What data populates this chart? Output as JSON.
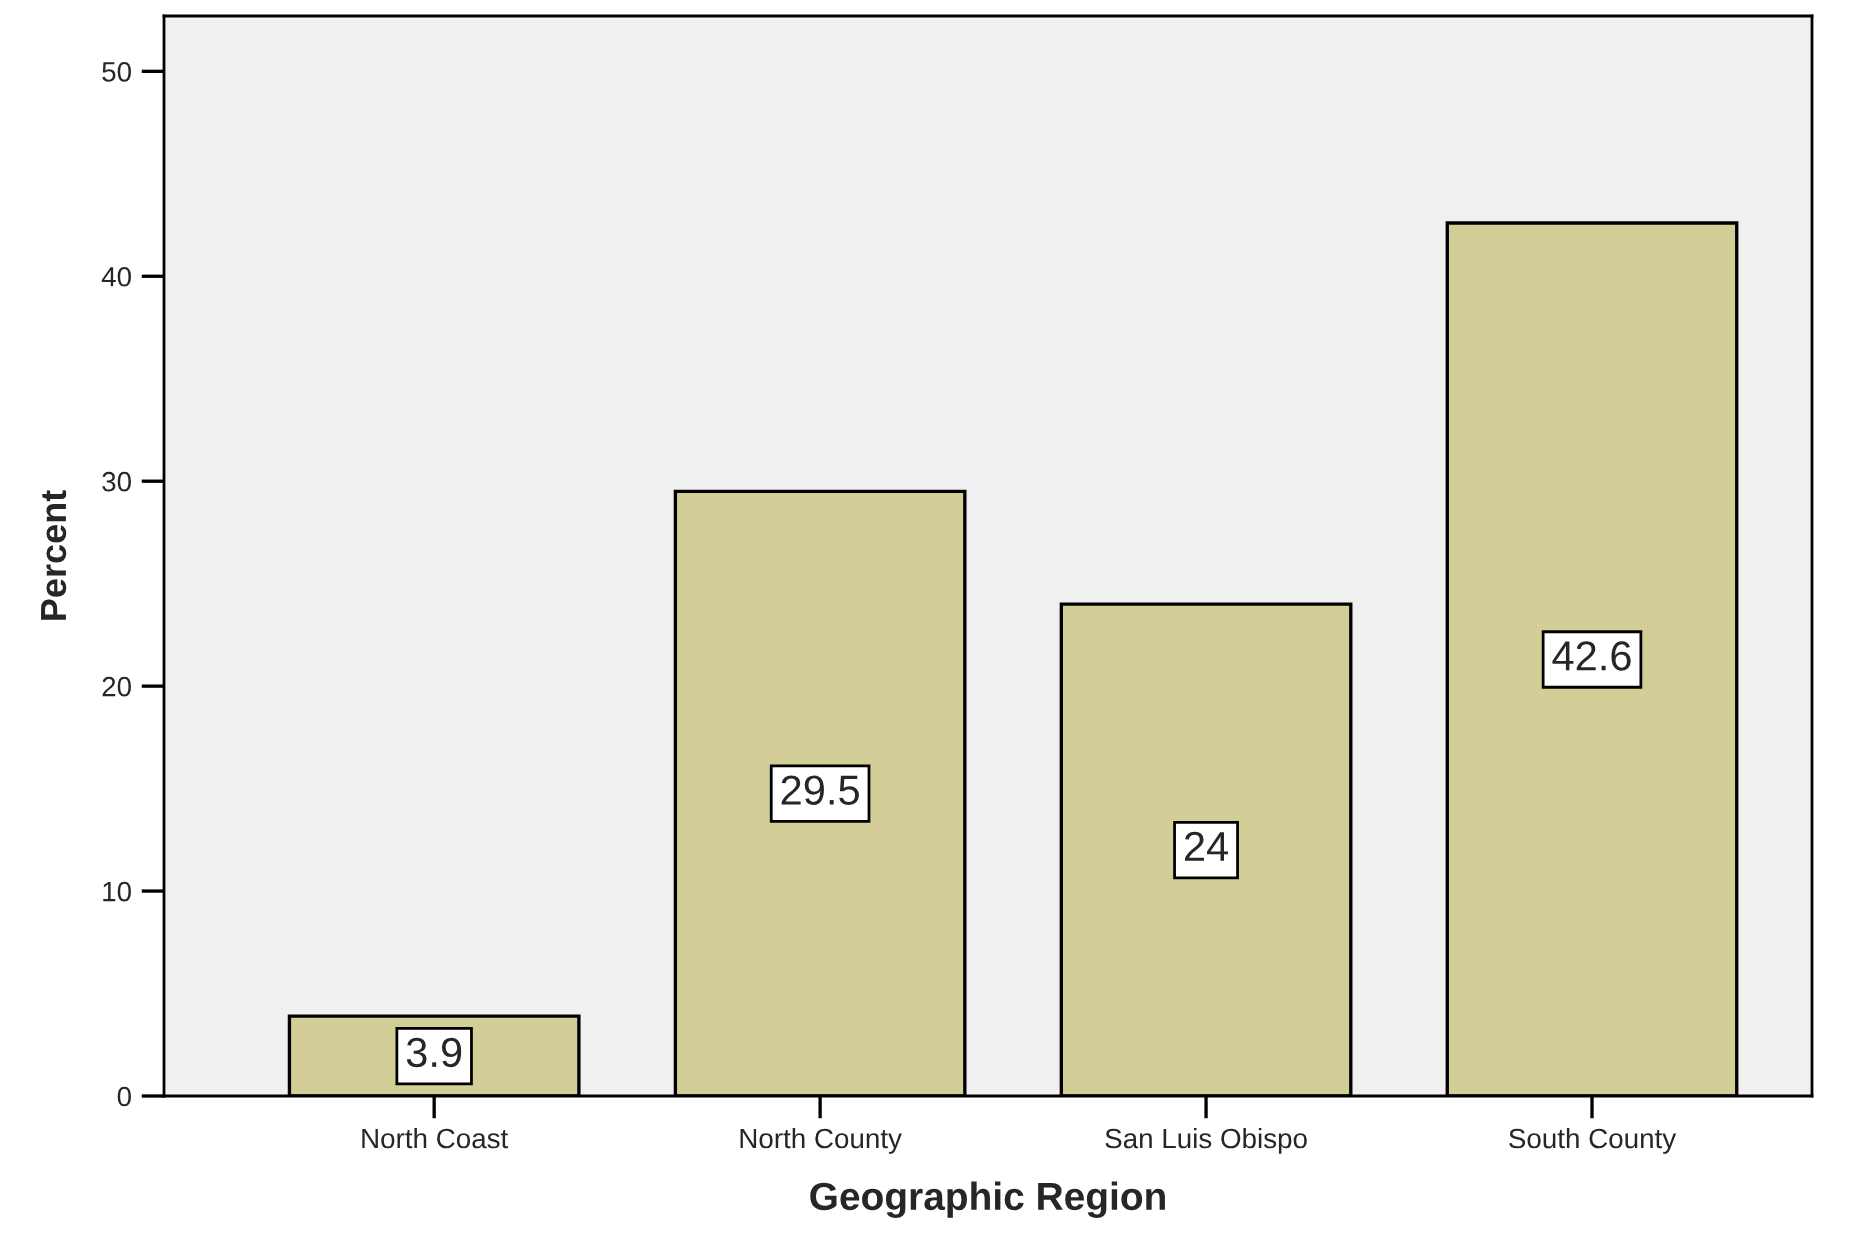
{
  "chart_data": {
    "type": "bar",
    "xlabel": "Geographic Region",
    "ylabel": "Percent",
    "categories": [
      "North Coast",
      "North County",
      "San Luis Obispo",
      "South County"
    ],
    "values": [
      3.9,
      29.5,
      24,
      42.6
    ],
    "color": "#d3ce97",
    "ylim": [
      0,
      52.7
    ],
    "yticks": [
      0,
      10,
      20,
      30,
      40,
      50
    ],
    "data_labels": true,
    "grid": false
  }
}
